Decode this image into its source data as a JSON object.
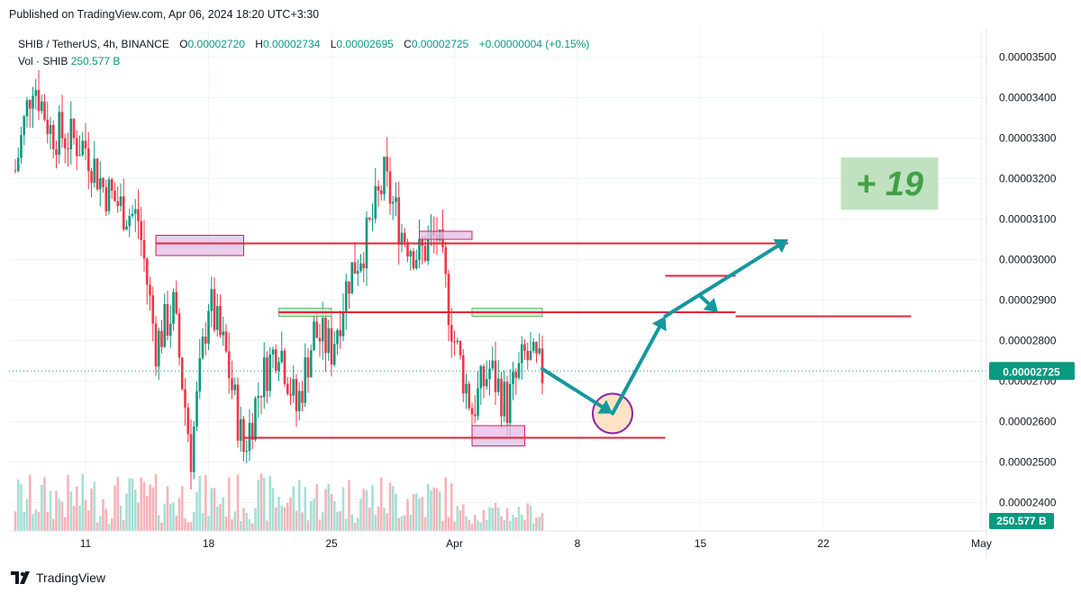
{
  "published": "Published on TradingView.com, Apr 06, 2024 18:20 UTC+3:30",
  "legend": {
    "symbol": "SHIB / TetherUS, 4h, BINANCE",
    "open_label": "O",
    "open": "0.00002720",
    "high_label": "H",
    "high": "0.00002734",
    "low_label": "L",
    "low": "0.00002695",
    "close_label": "C",
    "close": "0.00002725",
    "change": "+0.00000004 (+0.15%)",
    "vol_label": "Vol · SHIB",
    "vol": "250.577 B"
  },
  "brand": "TradingView",
  "colors": {
    "up": "#089981",
    "down": "#f23645",
    "hline": "#e8213a",
    "arrow": "#14989e",
    "zone_pink": "#e1bee7",
    "zone_green": "#c8e6c9",
    "label_bg": "#a5d6a7",
    "label_text": "#43a047"
  },
  "chart_data": {
    "type": "candlestick",
    "title": "SHIB / TetherUS, 4h, BINANCE",
    "x_ticks": [
      "11",
      "18",
      "25",
      "Apr",
      "8",
      "15",
      "22",
      "May"
    ],
    "y_ticks": [
      "0.00003500",
      "0.00003400",
      "0.00003300",
      "0.00003200",
      "0.00003100",
      "0.00003000",
      "0.00002900",
      "0.00002800",
      "0.00002700",
      "0.00002600",
      "0.00002500",
      "0.00002400"
    ],
    "ylim": [
      2.33e-05,
      3.57e-05
    ],
    "x_start": "2024-03-07",
    "last_price_label": "0.00002725",
    "last_volume_label": "250.577 B",
    "annotation_text": "+ 19",
    "anchors": [
      {
        "date": "2024-03-07",
        "price": 3.22e-05
      },
      {
        "date": "2024-03-08",
        "price": 3.45e-05
      },
      {
        "date": "2024-03-09",
        "price": 3.32e-05
      },
      {
        "date": "2024-03-11",
        "price": 3.28e-05
      },
      {
        "date": "2024-03-12",
        "price": 3.18e-05
      },
      {
        "date": "2024-03-13",
        "price": 3.13e-05
      },
      {
        "date": "2024-03-14",
        "price": 3.1e-05
      },
      {
        "date": "2024-03-15",
        "price": 2.79e-05
      },
      {
        "date": "2024-03-16",
        "price": 2.88e-05
      },
      {
        "date": "2024-03-17",
        "price": 2.52e-05
      },
      {
        "date": "2024-03-18",
        "price": 2.9e-05
      },
      {
        "date": "2024-03-19",
        "price": 2.76e-05
      },
      {
        "date": "2024-03-20",
        "price": 2.53e-05
      },
      {
        "date": "2024-03-21",
        "price": 2.7e-05
      },
      {
        "date": "2024-03-22",
        "price": 2.8e-05
      },
      {
        "date": "2024-03-23",
        "price": 2.63e-05
      },
      {
        "date": "2024-03-24",
        "price": 2.82e-05
      },
      {
        "date": "2024-03-25",
        "price": 2.78e-05
      },
      {
        "date": "2024-03-26",
        "price": 2.96e-05
      },
      {
        "date": "2024-03-27",
        "price": 3.05e-05
      },
      {
        "date": "2024-03-28",
        "price": 3.2e-05
      },
      {
        "date": "2024-03-29",
        "price": 3.07e-05
      },
      {
        "date": "2024-03-30",
        "price": 3.01e-05
      },
      {
        "date": "2024-03-31",
        "price": 3.06e-05
      },
      {
        "date": "2024-04-01",
        "price": 2.8e-05
      },
      {
        "date": "2024-04-02",
        "price": 2.63e-05
      },
      {
        "date": "2024-04-03",
        "price": 2.73e-05
      },
      {
        "date": "2024-04-04",
        "price": 2.64e-05
      },
      {
        "date": "2024-04-05",
        "price": 2.76e-05
      },
      {
        "date": "2024-04-06",
        "price": 2.72e-05
      }
    ],
    "horizontal_lines": [
      {
        "price": 3.04e-05,
        "from": "2024-03-15",
        "to": "2024-04-20"
      },
      {
        "price": 2.87e-05,
        "from": "2024-03-22",
        "to": "2024-04-17"
      },
      {
        "price": 2.86e-05,
        "from": "2024-04-17",
        "to": "2024-04-27"
      },
      {
        "price": 2.96e-05,
        "from": "2024-04-13",
        "to": "2024-04-17"
      },
      {
        "price": 2.56e-05,
        "from": "2024-03-20",
        "to": "2024-04-13"
      }
    ],
    "zones": [
      {
        "color": "pink",
        "from": "2024-03-15",
        "to": "2024-03-20",
        "high": 3.06e-05,
        "low": 3.01e-05
      },
      {
        "color": "green",
        "from": "2024-03-22",
        "to": "2024-03-25",
        "high": 2.88e-05,
        "low": 2.86e-05
      },
      {
        "color": "pink",
        "from": "2024-03-30",
        "to": "2024-04-02",
        "high": 3.07e-05,
        "low": 3.05e-05
      },
      {
        "color": "green",
        "from": "2024-04-02",
        "to": "2024-04-06",
        "high": 2.88e-05,
        "low": 2.86e-05
      },
      {
        "color": "pink",
        "from": "2024-04-02",
        "to": "2024-04-05",
        "high": 2.59e-05,
        "low": 2.54e-05
      }
    ],
    "projection_points": [
      {
        "date": "2024-04-06",
        "price": 2.73e-05
      },
      {
        "date": "2024-04-10",
        "price": 2.62e-05
      },
      {
        "date": "2024-04-13",
        "price": 2.86e-05
      },
      {
        "date": "2024-04-15",
        "price": 2.91e-05
      },
      {
        "date": "2024-04-16",
        "price": 2.87e-05
      },
      {
        "date": "2024-04-20",
        "price": 3.05e-05
      }
    ]
  }
}
